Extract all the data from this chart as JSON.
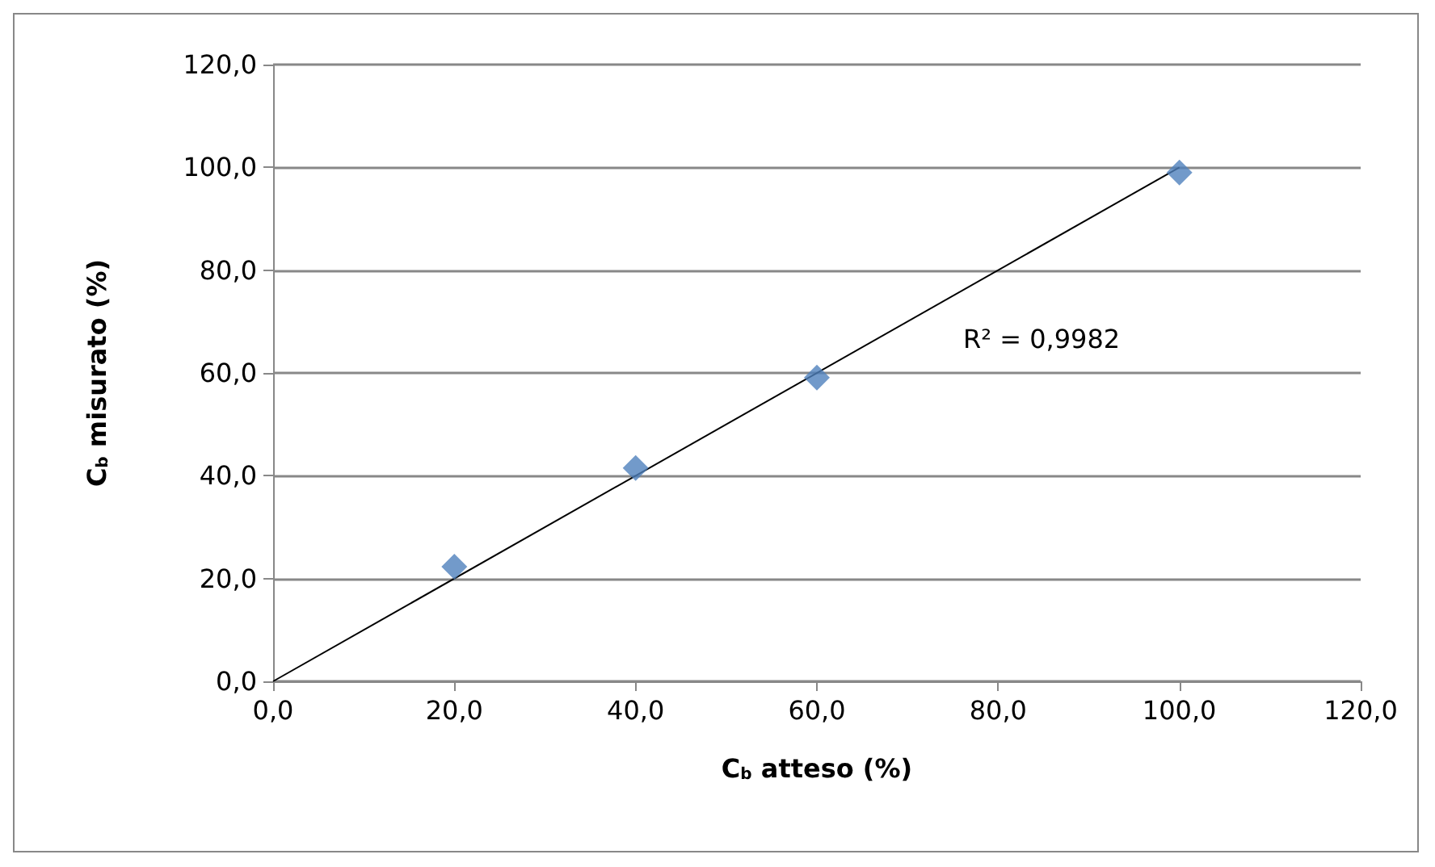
{
  "chart_data": {
    "type": "scatter",
    "xlabel": "C$_{b}$ atteso (%)",
    "ylabel": "C$_{b}$ misurato (%)",
    "xlim": [
      0,
      120
    ],
    "ylim": [
      0,
      120
    ],
    "xticks": [
      {
        "value": 0,
        "label": "0,0"
      },
      {
        "value": 20,
        "label": "20,0"
      },
      {
        "value": 40,
        "label": "40,0"
      },
      {
        "value": 60,
        "label": "60,0"
      },
      {
        "value": 80,
        "label": "80,0"
      },
      {
        "value": 100,
        "label": "100,0"
      },
      {
        "value": 120,
        "label": "120,0"
      }
    ],
    "yticks": [
      {
        "value": 0,
        "label": "0,0"
      },
      {
        "value": 20,
        "label": "20,0"
      },
      {
        "value": 40,
        "label": "40,0"
      },
      {
        "value": 60,
        "label": "60,0"
      },
      {
        "value": 80,
        "label": "80,0"
      },
      {
        "value": 100,
        "label": "100,0"
      },
      {
        "value": 120,
        "label": "120,0"
      }
    ],
    "grid": "y",
    "series": [
      {
        "color": "#4f81bd",
        "marker": "diamond",
        "x": [
          20,
          40,
          60,
          100
        ],
        "values": [
          22.3,
          41.5,
          59.1,
          99.0
        ]
      },
      {
        "type": "line",
        "color": "#000000",
        "marker": "none",
        "line_style": "solid",
        "x": [
          0,
          100
        ],
        "values": [
          0,
          100
        ]
      }
    ],
    "annotations": [
      "R² = 0,9982"
    ]
  }
}
